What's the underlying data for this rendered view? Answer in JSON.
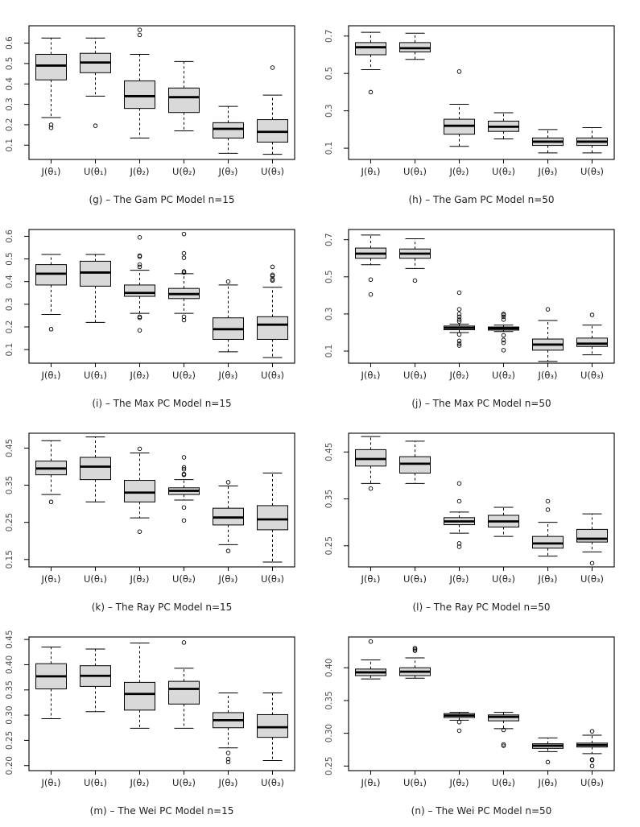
{
  "figure": {
    "background": "#ffffff",
    "box_fill": "#d9d9d9",
    "line_color": "#000000",
    "tick_label_color": "#4d4d4d",
    "axis_label_color": "#1f1f1f",
    "caption_color": "#1f1f1f"
  },
  "chart_data": {
    "type": "boxplot-grid",
    "layout": "2 columns x 4 rows",
    "grid": "off",
    "categories": [
      "J(θ₁)",
      "U(θ₁)",
      "J(θ₂)",
      "U(θ₂)",
      "J(θ₃)",
      "U(θ₃)"
    ],
    "charts": [
      {
        "id": "g",
        "caption": "(g) – The Gam PC Model n=15",
        "ylim": [
          0.03,
          0.685
        ],
        "yticks": [
          {
            "v": 0.1,
            "label": "0.1"
          },
          {
            "v": 0.2,
            "label": "0.2"
          },
          {
            "v": 0.3,
            "label": "0.3"
          },
          {
            "v": 0.4,
            "label": "0.4"
          },
          {
            "v": 0.5,
            "label": "0.5"
          },
          {
            "v": 0.6,
            "label": "0.6"
          }
        ],
        "boxes": [
          {
            "low": 0.235,
            "q1": 0.42,
            "median": 0.49,
            "q3": 0.545,
            "high": 0.625,
            "outliers": [
              0.2,
              0.185
            ]
          },
          {
            "low": 0.34,
            "q1": 0.455,
            "median": 0.505,
            "q3": 0.55,
            "high": 0.625,
            "outliers": [
              0.195
            ]
          },
          {
            "low": 0.135,
            "q1": 0.28,
            "median": 0.34,
            "q3": 0.415,
            "high": 0.545,
            "outliers": [
              0.665,
              0.64
            ]
          },
          {
            "low": 0.17,
            "q1": 0.26,
            "median": 0.335,
            "q3": 0.38,
            "high": 0.51,
            "outliers": []
          },
          {
            "low": 0.06,
            "q1": 0.135,
            "median": 0.18,
            "q3": 0.21,
            "high": 0.29,
            "outliers": []
          },
          {
            "low": 0.055,
            "q1": 0.115,
            "median": 0.165,
            "q3": 0.225,
            "high": 0.345,
            "outliers": [
              0.48
            ]
          }
        ]
      },
      {
        "id": "h",
        "caption": "(h) – The Gam PC Model n=50",
        "ylim": [
          0.04,
          0.755
        ],
        "yticks": [
          {
            "v": 0.1,
            "label": "0.1"
          },
          {
            "v": 0.3,
            "label": "0.3"
          },
          {
            "v": 0.5,
            "label": "0.5"
          },
          {
            "v": 0.7,
            "label": "0.7"
          }
        ],
        "boxes": [
          {
            "low": 0.52,
            "q1": 0.6,
            "median": 0.64,
            "q3": 0.665,
            "high": 0.72,
            "outliers": [
              0.4
            ]
          },
          {
            "low": 0.575,
            "q1": 0.615,
            "median": 0.635,
            "q3": 0.665,
            "high": 0.715,
            "outliers": []
          },
          {
            "low": 0.11,
            "q1": 0.175,
            "median": 0.22,
            "q3": 0.255,
            "high": 0.335,
            "outliers": [
              0.51
            ]
          },
          {
            "low": 0.15,
            "q1": 0.19,
            "median": 0.215,
            "q3": 0.245,
            "high": 0.29,
            "outliers": []
          },
          {
            "low": 0.075,
            "q1": 0.115,
            "median": 0.135,
            "q3": 0.155,
            "high": 0.2,
            "outliers": []
          },
          {
            "low": 0.075,
            "q1": 0.115,
            "median": 0.135,
            "q3": 0.155,
            "high": 0.21,
            "outliers": []
          }
        ]
      },
      {
        "id": "i",
        "caption": "(i) – The Max PC Model n=15",
        "ylim": [
          0.04,
          0.63
        ],
        "yticks": [
          {
            "v": 0.1,
            "label": "0.1"
          },
          {
            "v": 0.2,
            "label": "0.2"
          },
          {
            "v": 0.3,
            "label": "0.3"
          },
          {
            "v": 0.4,
            "label": "0.4"
          },
          {
            "v": 0.5,
            "label": "0.5"
          },
          {
            "v": 0.6,
            "label": "0.6"
          }
        ],
        "boxes": [
          {
            "low": 0.255,
            "q1": 0.385,
            "median": 0.435,
            "q3": 0.475,
            "high": 0.52,
            "outliers": [
              0.19
            ]
          },
          {
            "low": 0.22,
            "q1": 0.38,
            "median": 0.44,
            "q3": 0.49,
            "high": 0.52,
            "outliers": []
          },
          {
            "low": 0.26,
            "q1": 0.335,
            "median": 0.35,
            "q3": 0.385,
            "high": 0.45,
            "outliers": [
              0.595,
              0.515,
              0.51,
              0.475,
              0.465,
              0.245,
              0.24,
              0.185
            ]
          },
          {
            "low": 0.26,
            "q1": 0.325,
            "median": 0.345,
            "q3": 0.37,
            "high": 0.435,
            "outliers": [
              0.61,
              0.525,
              0.505,
              0.445,
              0.44,
              0.245,
              0.23
            ]
          },
          {
            "low": 0.09,
            "q1": 0.145,
            "median": 0.19,
            "q3": 0.24,
            "high": 0.385,
            "outliers": [
              0.4
            ]
          },
          {
            "low": 0.065,
            "q1": 0.145,
            "median": 0.21,
            "q3": 0.245,
            "high": 0.375,
            "outliers": [
              0.465,
              0.43,
              0.425,
              0.41,
              0.405
            ]
          }
        ]
      },
      {
        "id": "j",
        "caption": "(j) – The Max PC Model n=50",
        "ylim": [
          0.035,
          0.755
        ],
        "yticks": [
          {
            "v": 0.1,
            "label": "0.1"
          },
          {
            "v": 0.3,
            "label": "0.3"
          },
          {
            "v": 0.5,
            "label": "0.5"
          },
          {
            "v": 0.7,
            "label": "0.7"
          }
        ],
        "boxes": [
          {
            "low": 0.565,
            "q1": 0.6,
            "median": 0.625,
            "q3": 0.655,
            "high": 0.725,
            "outliers": [
              0.485,
              0.405
            ]
          },
          {
            "low": 0.545,
            "q1": 0.6,
            "median": 0.625,
            "q3": 0.65,
            "high": 0.705,
            "outliers": [
              0.48
            ]
          },
          {
            "low": 0.2,
            "q1": 0.215,
            "median": 0.225,
            "q3": 0.235,
            "high": 0.245,
            "outliers": [
              0.415,
              0.325,
              0.3,
              0.285,
              0.27,
              0.26,
              0.19,
              0.155,
              0.14,
              0.13
            ]
          },
          {
            "low": 0.205,
            "q1": 0.213,
            "median": 0.222,
            "q3": 0.23,
            "high": 0.24,
            "outliers": [
              0.3,
              0.295,
              0.285,
              0.27,
              0.185,
              0.16,
              0.145,
              0.105
            ]
          },
          {
            "low": 0.045,
            "q1": 0.105,
            "median": 0.135,
            "q3": 0.165,
            "high": 0.265,
            "outliers": [
              0.325
            ]
          },
          {
            "low": 0.08,
            "q1": 0.125,
            "median": 0.14,
            "q3": 0.17,
            "high": 0.24,
            "outliers": [
              0.295
            ]
          }
        ]
      },
      {
        "id": "k",
        "caption": "(k) – The Ray PC Model n=15",
        "ylim": [
          0.13,
          0.49
        ],
        "yticks": [
          {
            "v": 0.15,
            "label": "0.15"
          },
          {
            "v": 0.25,
            "label": "0.25"
          },
          {
            "v": 0.35,
            "label": "0.35"
          },
          {
            "v": 0.45,
            "label": "0.45"
          }
        ],
        "boxes": [
          {
            "low": 0.325,
            "q1": 0.378,
            "median": 0.395,
            "q3": 0.415,
            "high": 0.47,
            "outliers": [
              0.305
            ]
          },
          {
            "low": 0.305,
            "q1": 0.365,
            "median": 0.4,
            "q3": 0.425,
            "high": 0.48,
            "outliers": []
          },
          {
            "low": 0.262,
            "q1": 0.305,
            "median": 0.33,
            "q3": 0.363,
            "high": 0.437,
            "outliers": [
              0.448,
              0.225
            ]
          },
          {
            "low": 0.31,
            "q1": 0.325,
            "median": 0.335,
            "q3": 0.343,
            "high": 0.365,
            "outliers": [
              0.425,
              0.398,
              0.393,
              0.38,
              0.378,
              0.29,
              0.255
            ]
          },
          {
            "low": 0.19,
            "q1": 0.243,
            "median": 0.263,
            "q3": 0.288,
            "high": 0.348,
            "outliers": [
              0.358,
              0.173
            ]
          },
          {
            "low": 0.143,
            "q1": 0.23,
            "median": 0.258,
            "q3": 0.295,
            "high": 0.383,
            "outliers": []
          }
        ]
      },
      {
        "id": "l",
        "caption": "(l) – The Ray PC Model n=50",
        "ylim": [
          0.205,
          0.49
        ],
        "yticks": [
          {
            "v": 0.25,
            "label": "0.25"
          },
          {
            "v": 0.35,
            "label": "0.35"
          },
          {
            "v": 0.45,
            "label": "0.45"
          }
        ],
        "boxes": [
          {
            "low": 0.383,
            "q1": 0.42,
            "median": 0.435,
            "q3": 0.455,
            "high": 0.483,
            "outliers": [
              0.372
            ]
          },
          {
            "low": 0.383,
            "q1": 0.405,
            "median": 0.425,
            "q3": 0.44,
            "high": 0.473,
            "outliers": []
          },
          {
            "low": 0.277,
            "q1": 0.295,
            "median": 0.302,
            "q3": 0.31,
            "high": 0.322,
            "outliers": [
              0.383,
              0.345,
              0.255,
              0.248
            ]
          },
          {
            "low": 0.27,
            "q1": 0.29,
            "median": 0.302,
            "q3": 0.315,
            "high": 0.332,
            "outliers": []
          },
          {
            "low": 0.228,
            "q1": 0.245,
            "median": 0.255,
            "q3": 0.27,
            "high": 0.3,
            "outliers": [
              0.345,
              0.327
            ]
          },
          {
            "low": 0.237,
            "q1": 0.258,
            "median": 0.265,
            "q3": 0.285,
            "high": 0.318,
            "outliers": [
              0.213
            ]
          }
        ]
      },
      {
        "id": "m",
        "caption": "(m) – The Wei PC Model n=15",
        "ylim": [
          0.19,
          0.455
        ],
        "yticks": [
          {
            "v": 0.2,
            "label": "0.20"
          },
          {
            "v": 0.25,
            "label": "0.25"
          },
          {
            "v": 0.3,
            "label": "0.30"
          },
          {
            "v": 0.35,
            "label": "0.35"
          },
          {
            "v": 0.4,
            "label": "0.40"
          },
          {
            "v": 0.45,
            "label": "0.45"
          }
        ],
        "boxes": [
          {
            "low": 0.293,
            "q1": 0.352,
            "median": 0.377,
            "q3": 0.402,
            "high": 0.435,
            "outliers": []
          },
          {
            "low": 0.307,
            "q1": 0.357,
            "median": 0.378,
            "q3": 0.398,
            "high": 0.431,
            "outliers": []
          },
          {
            "low": 0.274,
            "q1": 0.31,
            "median": 0.342,
            "q3": 0.365,
            "high": 0.443,
            "outliers": []
          },
          {
            "low": 0.274,
            "q1": 0.322,
            "median": 0.352,
            "q3": 0.367,
            "high": 0.393,
            "outliers": [
              0.444
            ]
          },
          {
            "low": 0.235,
            "q1": 0.275,
            "median": 0.29,
            "q3": 0.305,
            "high": 0.344,
            "outliers": [
              0.225,
              0.213,
              0.207
            ]
          },
          {
            "low": 0.21,
            "q1": 0.256,
            "median": 0.276,
            "q3": 0.301,
            "high": 0.344,
            "outliers": []
          }
        ]
      },
      {
        "id": "n",
        "caption": "(n) – The Wei PC Model n=50",
        "ylim": [
          0.243,
          0.447
        ],
        "yticks": [
          {
            "v": 0.25,
            "label": "0.25"
          },
          {
            "v": 0.3,
            "label": "0.30"
          },
          {
            "v": 0.35,
            "label": "0.35"
          },
          {
            "v": 0.4,
            "label": "0.40"
          }
        ],
        "boxes": [
          {
            "low": 0.383,
            "q1": 0.388,
            "median": 0.393,
            "q3": 0.398,
            "high": 0.412,
            "outliers": [
              0.44
            ]
          },
          {
            "low": 0.384,
            "q1": 0.388,
            "median": 0.394,
            "q3": 0.4,
            "high": 0.415,
            "outliers": [
              0.43,
              0.428,
              0.426
            ]
          },
          {
            "low": 0.32,
            "q1": 0.324,
            "median": 0.327,
            "q3": 0.33,
            "high": 0.332,
            "outliers": [
              0.317,
              0.304
            ]
          },
          {
            "low": 0.307,
            "q1": 0.319,
            "median": 0.325,
            "q3": 0.328,
            "high": 0.332,
            "outliers": [
              0.305,
              0.283,
              0.281
            ]
          },
          {
            "low": 0.272,
            "q1": 0.277,
            "median": 0.281,
            "q3": 0.284,
            "high": 0.293,
            "outliers": [
              0.256
            ]
          },
          {
            "low": 0.269,
            "q1": 0.279,
            "median": 0.282,
            "q3": 0.285,
            "high": 0.297,
            "outliers": [
              0.303,
              0.26,
              0.259,
              0.25
            ]
          }
        ]
      }
    ]
  }
}
